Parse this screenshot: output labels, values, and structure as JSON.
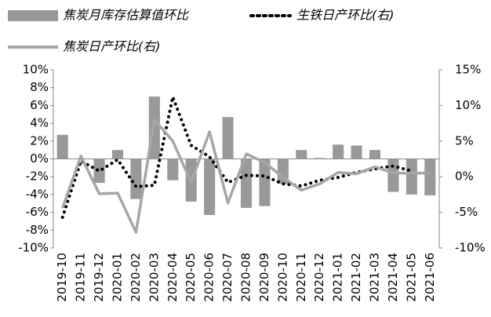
{
  "chart_data": {
    "type": "bar",
    "categories": [
      "2019-10",
      "2019-11",
      "2019-12",
      "2020-01",
      "2020-02",
      "2020-03",
      "2020-04",
      "2020-05",
      "2020-06",
      "2020-07",
      "2020-08",
      "2020-09",
      "2020-10",
      "2020-11",
      "2020-12",
      "2021-01",
      "2021-02",
      "2021-03",
      "2021-04",
      "2021-05",
      "2021-06"
    ],
    "series": [
      {
        "name": "焦炭月库存估算值环比",
        "type": "bar",
        "color": "#999999",
        "axis": "y",
        "values": [
          2.7,
          0,
          -2.7,
          1.0,
          -4.5,
          7.0,
          -2.4,
          -4.8,
          -6.3,
          4.7,
          -5.5,
          -5.3,
          -2.8,
          1.0,
          0.1,
          1.6,
          1.5,
          1.0,
          -3.7,
          -4.0,
          -4.1
        ]
      },
      {
        "name": "生铁日产环比(右)",
        "type": "line",
        "style": "dotted",
        "color": "#000000",
        "axis": "y2",
        "values": [
          -5.7,
          2.2,
          0.8,
          2.4,
          -1.4,
          -1.2,
          11.2,
          4.4,
          2.8,
          -0.8,
          0.2,
          0.1,
          -1.0,
          -1.3,
          -0.5,
          -0.1,
          0.6,
          1.1,
          1.5,
          0.8,
          null
        ]
      },
      {
        "name": "焦炭日产环比(右)",
        "type": "line",
        "style": "solid",
        "color": "#a6a6a6",
        "axis": "y2",
        "values": [
          -4.4,
          2.9,
          -2.4,
          -2.3,
          -7.8,
          8.0,
          5.0,
          -0.8,
          6.3,
          -3.7,
          3.2,
          2.0,
          -0.1,
          -1.9,
          -1.0,
          0.6,
          0.4,
          1.4,
          0.5,
          0.5,
          0.5
        ]
      }
    ],
    "ylim": [
      -10,
      10
    ],
    "yticks": [
      {
        "value": -10,
        "label": "-10%"
      },
      {
        "value": -8,
        "label": "-8%"
      },
      {
        "value": -6,
        "label": "-6%"
      },
      {
        "value": -4,
        "label": "-4%"
      },
      {
        "value": -2,
        "label": "-2%"
      },
      {
        "value": 0,
        "label": "0%"
      },
      {
        "value": 2,
        "label": "2%"
      },
      {
        "value": 4,
        "label": "4%"
      },
      {
        "value": 6,
        "label": "6%"
      },
      {
        "value": 8,
        "label": "8%"
      },
      {
        "value": 10,
        "label": "10%"
      }
    ],
    "y2lim": [
      -10,
      15
    ],
    "y2ticks": [
      {
        "value": -10,
        "label": "-10%"
      },
      {
        "value": -5,
        "label": "-5%"
      },
      {
        "value": 0,
        "label": "0%"
      },
      {
        "value": 5,
        "label": "5%"
      },
      {
        "value": 10,
        "label": "10%"
      },
      {
        "value": 15,
        "label": "15%"
      }
    ]
  }
}
